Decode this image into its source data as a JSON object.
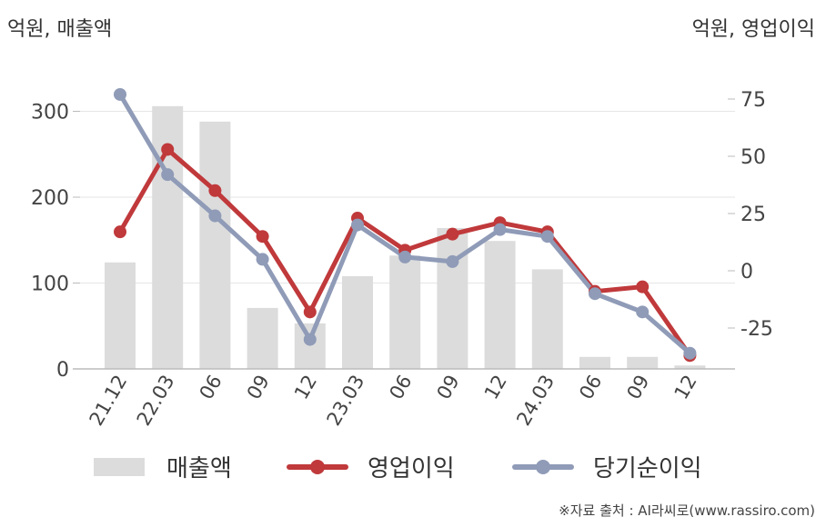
{
  "chart_data": {
    "type": "bar+line",
    "left_axis_label": "억원, 매출액",
    "right_axis_label": "억원, 영업이익",
    "categories": [
      "21.12",
      "22.03",
      "06",
      "09",
      "12",
      "23.03",
      "06",
      "09",
      "12",
      "24.03",
      "06",
      "09",
      "12"
    ],
    "left_ylim": [
      0,
      340
    ],
    "left_ticks": [
      0,
      100,
      200,
      300
    ],
    "right_ylim": [
      -43,
      84
    ],
    "right_ticks": [
      -25,
      0,
      25,
      50,
      75
    ],
    "series": [
      {
        "name": "매출액",
        "kind": "bar",
        "axis": "left",
        "color": "#dcdcdc",
        "values": [
          124,
          306,
          288,
          71,
          53,
          108,
          132,
          164,
          149,
          116,
          14,
          14,
          4
        ]
      },
      {
        "name": "영업이익",
        "kind": "line",
        "axis": "right",
        "color": "#c0393b",
        "values": [
          17,
          53,
          35,
          15,
          -18,
          23,
          9,
          16,
          21,
          17,
          -9,
          -7,
          -37
        ]
      },
      {
        "name": "당기순이익",
        "kind": "line",
        "axis": "right",
        "color": "#8f9bb7",
        "values": [
          77,
          42,
          24,
          5,
          -30,
          20,
          6,
          4,
          18,
          15,
          -10,
          -18,
          -36
        ]
      }
    ],
    "grid": true,
    "legend_position": "bottom"
  },
  "source": "※자료 출처 : AI라씨로(www.rassiro.com)"
}
